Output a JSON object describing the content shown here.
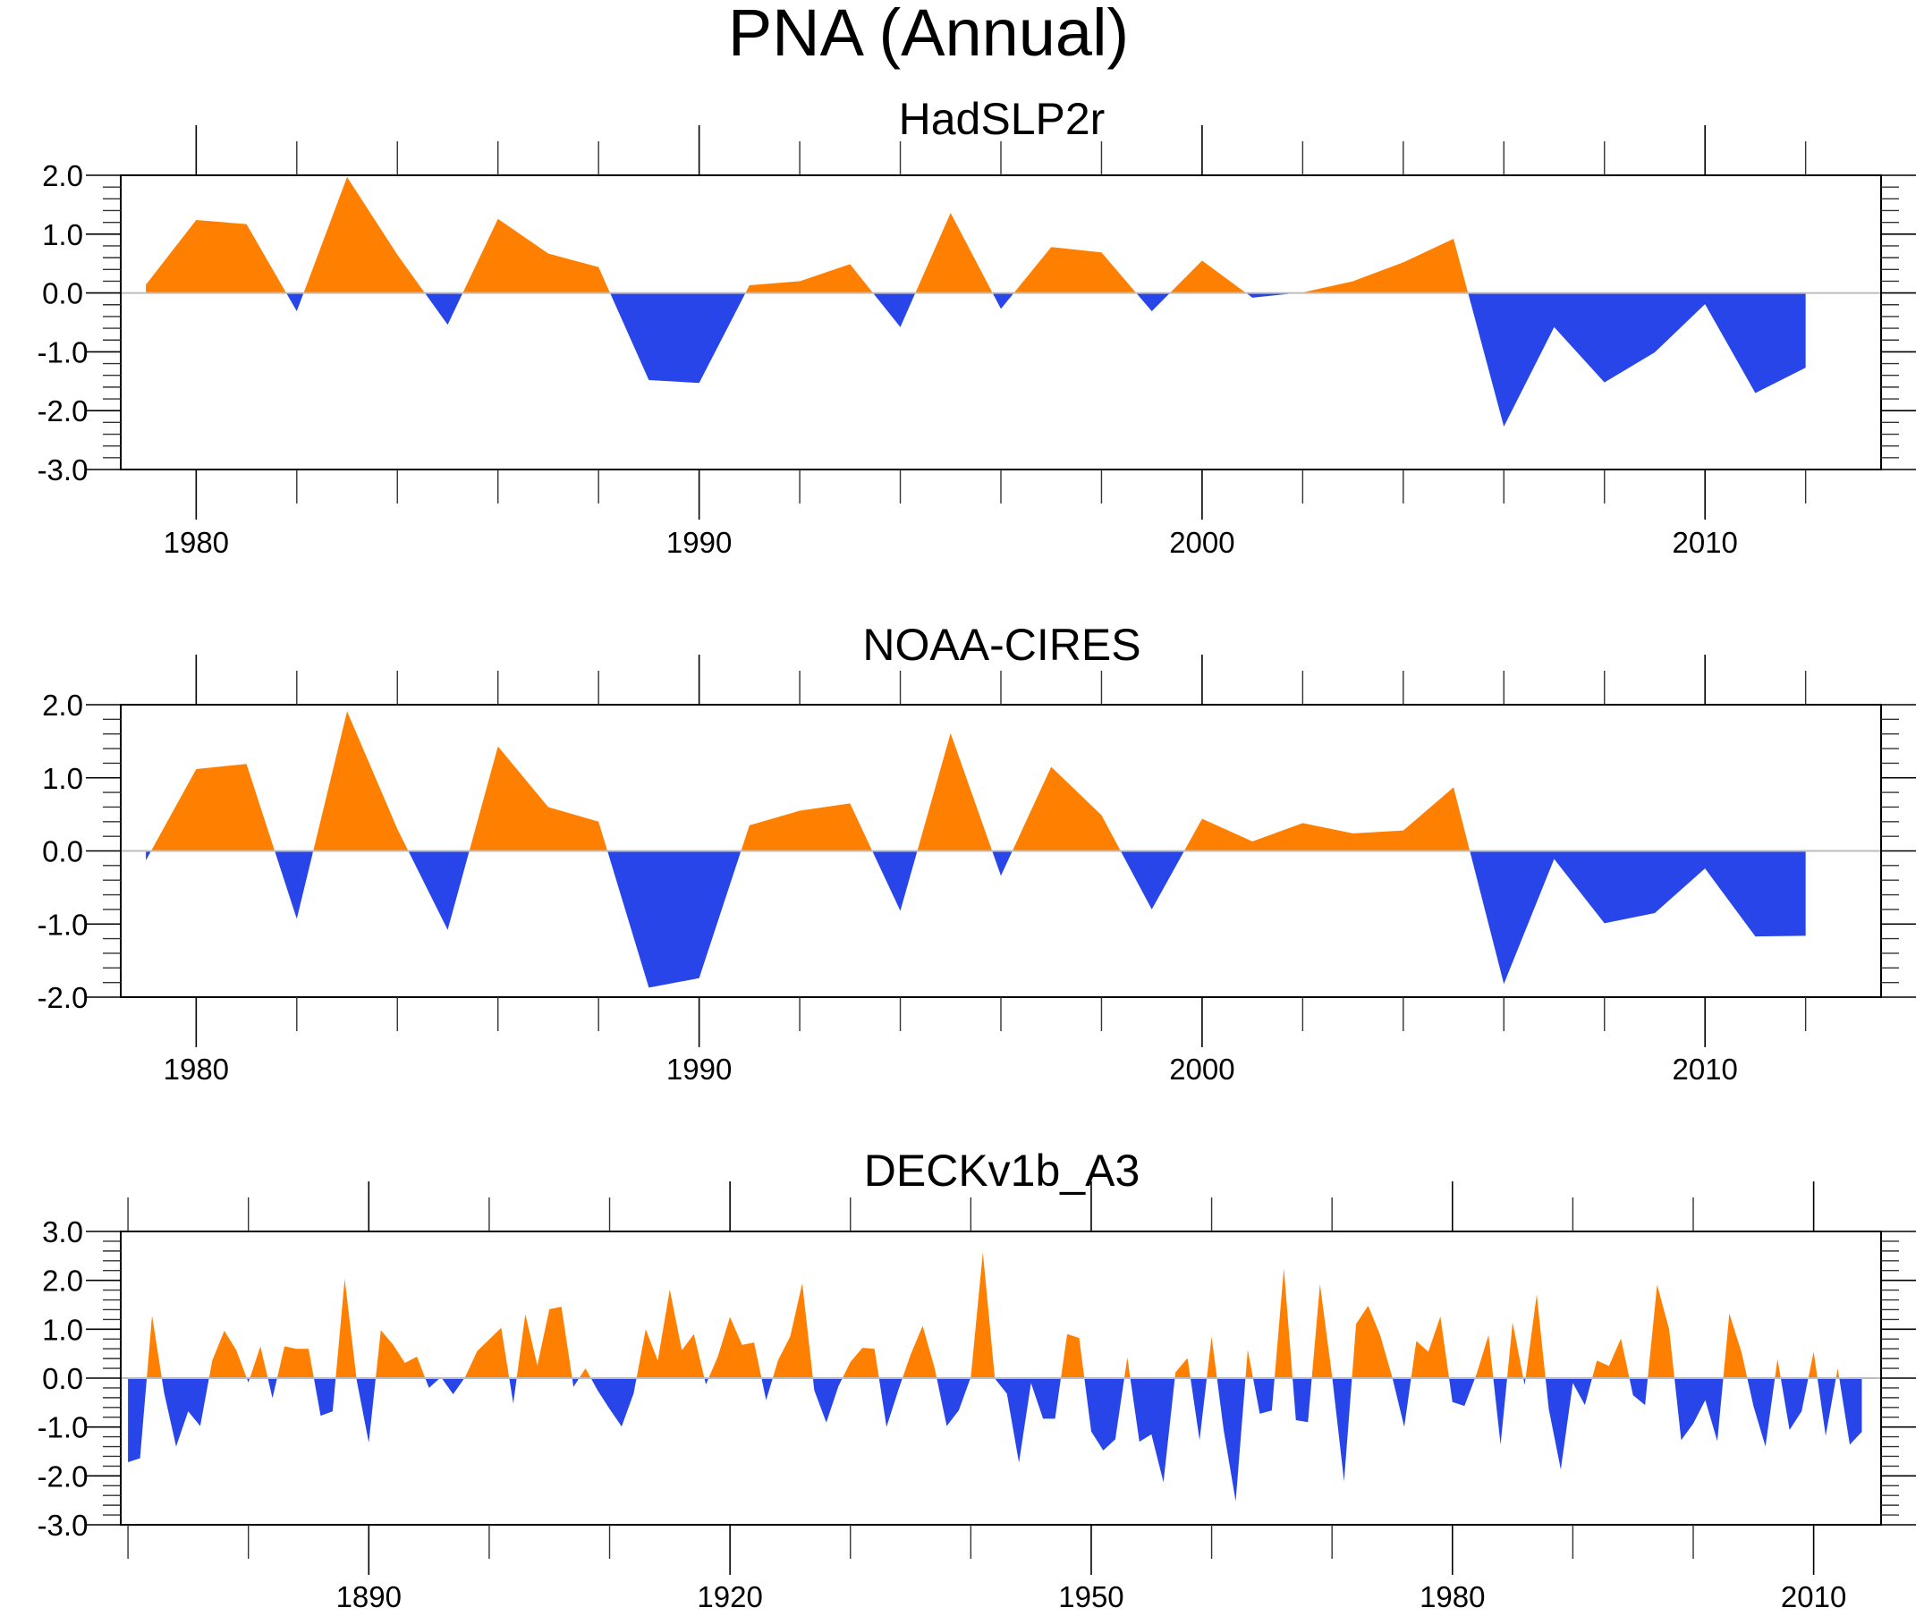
{
  "figure": {
    "title": "PNA (Annual)",
    "colors": {
      "positive": "#FF8000",
      "negative": "#2845EA",
      "zero_line": "#BDBDBD",
      "axis": "#000000"
    }
  },
  "chart_data": [
    {
      "type": "area",
      "title": "HadSLP2r",
      "xlabel": "",
      "ylabel": "",
      "xlim": [
        1978.5,
        2013.5
      ],
      "ylim": [
        -3.0,
        2.0
      ],
      "x_major_ticks": [
        1980,
        1990,
        2000,
        2010
      ],
      "x_tick_labels": [
        "1980",
        "1990",
        "2000",
        "2010"
      ],
      "x_minor_step": 2,
      "y_ticks": [
        2.0,
        1.0,
        0.0,
        -1.0,
        -2.0,
        -3.0
      ],
      "y_tick_labels": [
        "2.0",
        "1.0",
        "0.0",
        "-1.0",
        "-2.0",
        "-3.0"
      ],
      "y_minor_step": 0.2,
      "grid": false,
      "legend": "none",
      "x": [
        1979,
        1980,
        1981,
        1982,
        1983,
        1984,
        1985,
        1986,
        1987,
        1988,
        1989,
        1990,
        1991,
        1992,
        1993,
        1994,
        1995,
        1996,
        1997,
        1998,
        1999,
        2000,
        2001,
        2002,
        2003,
        2004,
        2005,
        2006,
        2007,
        2008,
        2009,
        2010,
        2011,
        2012
      ],
      "values": [
        0.14,
        1.24,
        1.17,
        -0.31,
        1.97,
        0.65,
        -0.54,
        1.26,
        0.67,
        0.44,
        -1.48,
        -1.53,
        0.13,
        0.2,
        0.49,
        -0.58,
        1.36,
        -0.27,
        0.78,
        0.69,
        -0.31,
        0.55,
        -0.08,
        0.01,
        0.2,
        0.52,
        0.92,
        -2.27,
        -0.58,
        -1.52,
        -1.01,
        -0.19,
        -1.7,
        -1.27
      ]
    },
    {
      "type": "area",
      "title": "NOAA-CIRES",
      "xlabel": "",
      "ylabel": "",
      "xlim": [
        1978.5,
        2013.5
      ],
      "ylim": [
        -2.0,
        2.0
      ],
      "x_major_ticks": [
        1980,
        1990,
        2000,
        2010
      ],
      "x_tick_labels": [
        "1980",
        "1990",
        "2000",
        "2010"
      ],
      "x_minor_step": 2,
      "y_ticks": [
        2.0,
        1.0,
        0.0,
        -1.0,
        -2.0
      ],
      "y_tick_labels": [
        "2.0",
        "1.0",
        "0.0",
        "-1.0",
        "-2.0"
      ],
      "y_minor_step": 0.2,
      "grid": false,
      "legend": "none",
      "x": [
        1979,
        1980,
        1981,
        1982,
        1983,
        1984,
        1985,
        1986,
        1987,
        1988,
        1989,
        1990,
        1991,
        1992,
        1993,
        1994,
        1995,
        1996,
        1997,
        1998,
        1999,
        2000,
        2001,
        2002,
        2003,
        2004,
        2005,
        2006,
        2007,
        2008,
        2009,
        2010,
        2011,
        2012
      ],
      "values": [
        -0.13,
        1.12,
        1.19,
        -0.93,
        1.91,
        0.3,
        -1.08,
        1.43,
        0.6,
        0.4,
        -1.87,
        -1.74,
        0.35,
        0.55,
        0.65,
        -0.82,
        1.61,
        -0.34,
        1.15,
        0.49,
        -0.8,
        0.44,
        0.13,
        0.38,
        0.24,
        0.28,
        0.87,
        -1.82,
        -0.11,
        -0.99,
        -0.85,
        -0.24,
        -1.17,
        -1.16
      ]
    },
    {
      "type": "area",
      "title": "DECKv1b_A3",
      "xlabel": "",
      "ylabel": "",
      "xlim": [
        1869.4,
        2015.6
      ],
      "ylim": [
        -3.0,
        3.0
      ],
      "x_major_ticks": [
        1890,
        1920,
        1950,
        1980,
        2010
      ],
      "x_tick_labels": [
        "1890",
        "1920",
        "1950",
        "1980",
        "2010"
      ],
      "x_minor_step": 10,
      "y_ticks": [
        3.0,
        2.0,
        1.0,
        0.0,
        -1.0,
        -2.0,
        -3.0
      ],
      "y_tick_labels": [
        "3.0",
        "2.0",
        "1.0",
        "0.0",
        "-1.0",
        "-2.0",
        "-3.0"
      ],
      "y_minor_step": 0.2,
      "grid": false,
      "legend": "none",
      "x_start": 1870,
      "values": [
        -1.72,
        -1.64,
        1.28,
        -0.3,
        -1.4,
        -0.68,
        -0.98,
        0.36,
        0.97,
        0.57,
        -0.09,
        0.65,
        -0.41,
        0.65,
        0.6,
        0.6,
        -0.77,
        -0.68,
        2.03,
        -0.05,
        -1.32,
        0.98,
        0.69,
        0.31,
        0.44,
        -0.2,
        0.02,
        -0.33,
        0.02,
        0.55,
        0.79,
        1.03,
        -0.52,
        1.31,
        0.26,
        1.41,
        1.46,
        -0.18,
        0.2,
        -0.25,
        -0.63,
        -0.99,
        -0.31,
        1.0,
        0.36,
        1.81,
        0.57,
        0.9,
        -0.13,
        0.45,
        1.25,
        0.68,
        0.73,
        -0.45,
        0.37,
        0.85,
        1.94,
        -0.25,
        -0.91,
        -0.17,
        0.33,
        0.62,
        0.6,
        -1.0,
        -0.23,
        0.48,
        1.07,
        0.2,
        -0.98,
        -0.66,
        0.02,
        2.57,
        -0.01,
        -0.32,
        -1.73,
        -0.1,
        -0.83,
        -0.83,
        0.9,
        0.82,
        -1.09,
        -1.48,
        -1.25,
        0.42,
        -1.3,
        -1.15,
        -2.13,
        0.12,
        0.41,
        -1.27,
        0.85,
        -1.06,
        -2.52,
        0.58,
        -0.73,
        -0.66,
        2.25,
        -0.86,
        -0.9,
        1.92,
        0.05,
        -2.11,
        1.11,
        1.48,
        0.88,
        0.02,
        -1.0,
        0.76,
        0.54,
        1.26,
        -0.49,
        -0.57,
        0.08,
        0.88,
        -1.36,
        1.14,
        -0.14,
        1.71,
        -0.63,
        -1.87,
        -0.1,
        -0.55,
        0.36,
        0.25,
        0.81,
        -0.35,
        -0.55,
        1.91,
        1.0,
        -1.27,
        -0.93,
        -0.45,
        -1.29,
        1.32,
        0.54,
        -0.57,
        -1.4,
        0.39,
        -1.06,
        -0.68,
        0.54,
        -1.18,
        0.2,
        -1.36,
        -1.1
      ]
    }
  ]
}
